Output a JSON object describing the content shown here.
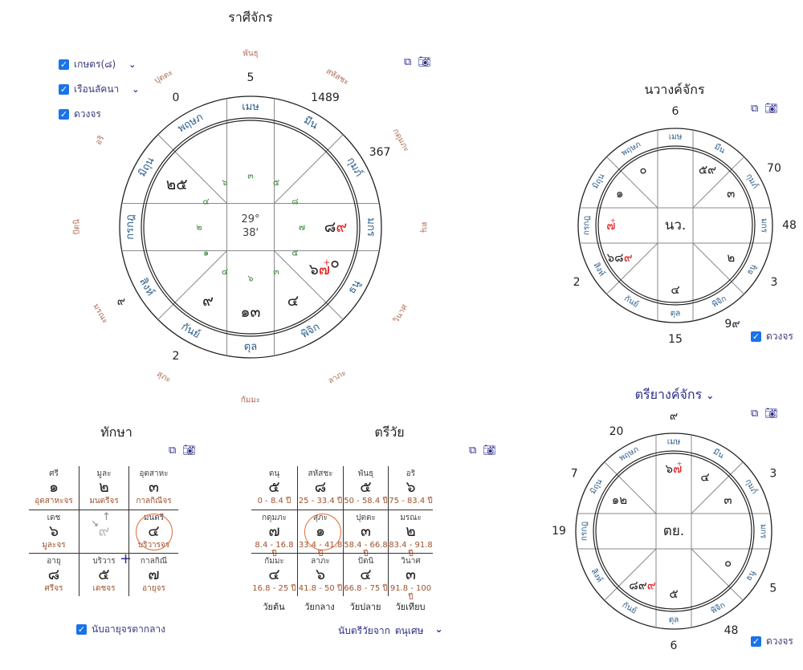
{
  "colors": {
    "zodiac": "#2b5d8a",
    "green": "#3a8a3a",
    "house": "#b0705a",
    "red": "#e02020",
    "accent": "#2d2d8a",
    "ring": "#e0703a"
  },
  "zodiac": [
    "เมษ",
    "มีน",
    "กุมภ์",
    "มกร",
    "ธนู",
    "พิจิก",
    "ตุล",
    "กันย์",
    "สิงห์",
    "กรกฎ",
    "มิถุน",
    "พฤษภ"
  ],
  "main": {
    "title": "ราศีจักร",
    "checkboxes": [
      {
        "label": "เกษตร(๘)",
        "checked": true,
        "dropdown": true
      },
      {
        "label": "เรือนลัคนา",
        "checked": true,
        "dropdown": true
      },
      {
        "label": "ดวงจร",
        "checked": true
      }
    ],
    "icons": [
      "external-link-icon",
      "camera-icon"
    ],
    "center": [
      "29°",
      "38'"
    ]
  },
  "charts": [
    {
      "name": "rasi",
      "planets": [
        [],
        [],
        [],
        [
          {
            "g": "๘"
          },
          {
            "g": "๙",
            "red": true
          }
        ],
        [
          {
            "g": "๖"
          },
          {
            "g": "๗",
            "red": true,
            "mark": "+"
          },
          {
            "g": "๐"
          }
        ],
        [
          {
            "g": "๔"
          }
        ],
        [
          {
            "g": "๑๓"
          }
        ],
        [
          {
            "g": "๙"
          }
        ],
        [],
        [],
        [
          {
            "g": "๒๕"
          }
        ],
        []
      ],
      "green": [
        "๓",
        "๕",
        "๘",
        "๗",
        "๕",
        "๓",
        "๖",
        "๔",
        "๑",
        "๒",
        "๔",
        "๖"
      ],
      "outer": [
        "5",
        "1489",
        "367",
        "",
        "",
        "",
        "",
        "2",
        "๙",
        "",
        "",
        "0"
      ],
      "houses": [
        "พันธุ",
        "สหัสชะ",
        "กดุมภะ",
        "ตนุ",
        "วินาศ",
        "ลาภะ",
        "กัมมะ",
        "สุภะ",
        "มรณะ",
        "ปัตนิ",
        "อริ",
        "ปุตตะ"
      ]
    },
    {
      "name": "navang",
      "planets": [
        [],
        [
          {
            "g": "๕๙"
          }
        ],
        [
          {
            "g": "๓"
          }
        ],
        [],
        [
          {
            "g": "๒"
          }
        ],
        [],
        [
          {
            "g": "๔"
          }
        ],
        [],
        [
          {
            "g": "๖๘"
          },
          {
            "g": "๙",
            "red": true
          }
        ],
        [
          {
            "g": "๗",
            "red": true,
            "mark": "+"
          }
        ],
        [
          {
            "g": "๑"
          }
        ],
        [
          {
            "g": "๐"
          }
        ]
      ],
      "outer": [
        "6",
        "",
        "70",
        "48",
        "3",
        "9๙",
        "15",
        "",
        "2",
        "",
        "",
        ""
      ],
      "center": "นว."
    },
    {
      "name": "triyang",
      "planets": [
        [
          {
            "g": "๖"
          },
          {
            "g": "๗",
            "red": true,
            "mark": "+"
          }
        ],
        [
          {
            "g": "๔"
          }
        ],
        [
          {
            "g": "๓"
          }
        ],
        [],
        [
          {
            "g": "๐"
          }
        ],
        [],
        [
          {
            "g": "๕"
          }
        ],
        [
          {
            "g": "๘๙"
          },
          {
            "g": "๙",
            "red": true
          }
        ],
        [],
        [],
        [
          {
            "g": "๑๒"
          }
        ],
        []
      ],
      "outer": [
        "๙",
        "",
        "3",
        "",
        "5",
        "48",
        "6",
        "",
        "",
        "19",
        "7",
        "20"
      ],
      "center": "ตย."
    }
  ],
  "navang": {
    "title": "นวางค์จักร",
    "checkbox": {
      "label": "ดวงจร",
      "checked": true
    }
  },
  "triyang": {
    "title": "ตรียางค์จักร",
    "checkbox": {
      "label": "ดวงจร",
      "checked": true
    }
  },
  "taksa": {
    "title": "ทักษา",
    "cells": [
      {
        "name": "ศรี",
        "num": "๑",
        "sub": "อุตสาหะจร"
      },
      {
        "name": "มูละ",
        "num": "๒",
        "sub": "มนตรีจร"
      },
      {
        "name": "อุตสาหะ",
        "num": "๓",
        "sub": "กาลกิณีจร"
      },
      {
        "name": "เดช",
        "num": "๖",
        "sub": "มูละจร"
      },
      {
        "name": "",
        "num": "๙",
        "sub": "",
        "center": true
      },
      {
        "name": "มนตรี",
        "num": "๔",
        "sub": "บริวารจร",
        "highlight": true
      },
      {
        "name": "อายุ",
        "num": "๘",
        "sub": "ศรีจร"
      },
      {
        "name": "บริวาร",
        "num": "๕",
        "sub": "เดชจร",
        "cross": true
      },
      {
        "name": "กาลกิณี",
        "num": "๗",
        "sub": "อายุจร"
      }
    ],
    "checkbox": {
      "label": "นับอายุจรตากลาง",
      "checked": true
    }
  },
  "triwai": {
    "title": "ตรีวัย",
    "cells": [
      {
        "name": "ตนุ",
        "num": "๕",
        "sub": "0 - 8.4 ปี"
      },
      {
        "name": "สหัสชะ",
        "num": "๘",
        "sub": "25 - 33.4 ปี"
      },
      {
        "name": "พันธุ",
        "num": "๕",
        "sub": "50 - 58.4 ปี"
      },
      {
        "name": "อริ",
        "num": "๖",
        "sub": "75 - 83.4 ปี"
      },
      {
        "name": "กดุมภะ",
        "num": "๗",
        "sub": "8.4 - 16.8 ปี"
      },
      {
        "name": "สุภะ",
        "num": "๑",
        "sub": "33.4 - 41.8 ปี",
        "highlight": true
      },
      {
        "name": "ปุตตะ",
        "num": "๓",
        "sub": "58.4 - 66.8 ปี"
      },
      {
        "name": "มรณะ",
        "num": "๒",
        "sub": "83.4 - 91.8 ปี"
      },
      {
        "name": "กัมมะ",
        "num": "๔",
        "sub": "16.8 - 25 ปี"
      },
      {
        "name": "ลาภะ",
        "num": "๖",
        "sub": "41.8 - 50 ปี"
      },
      {
        "name": "ปัตนิ",
        "num": "๔",
        "sub": "66.8 - 75 ปี"
      },
      {
        "name": "วินาศ",
        "num": "๓",
        "sub": "91.8 - 100 ปี"
      }
    ],
    "ages": [
      "วัยต้น",
      "วัยกลาง",
      "วัยปลาย",
      "วัยเทียบ"
    ],
    "count_label": "นับตรีวัยจาก",
    "count_value": "ตนุเศษ"
  }
}
